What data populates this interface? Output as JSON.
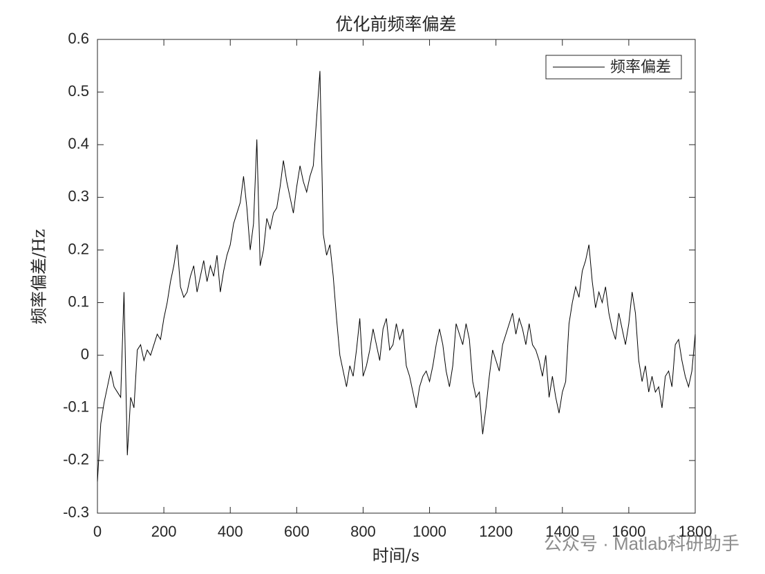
{
  "chart_data": {
    "type": "line",
    "title": "优化前频率偏差",
    "x_label": "时间/s",
    "y_label": "频率偏差/Hz",
    "watermark": "公众号 · Matlab科研助手",
    "legend": "northeast",
    "xlim": [
      0,
      1800
    ],
    "xticks": [
      0,
      200,
      400,
      600,
      800,
      1000,
      1200,
      1400,
      1600,
      1800
    ],
    "ylim": [
      -0.3,
      0.6
    ],
    "yticks": [
      -0.3,
      -0.2,
      -0.1,
      0,
      0.1,
      0.2,
      0.3,
      0.4,
      0.5,
      0.6
    ],
    "x": [
      0,
      10,
      20,
      30,
      40,
      50,
      60,
      70,
      80,
      90,
      100,
      110,
      120,
      130,
      140,
      150,
      160,
      170,
      180,
      190,
      200,
      210,
      220,
      230,
      240,
      250,
      260,
      270,
      280,
      290,
      300,
      310,
      320,
      330,
      340,
      350,
      360,
      370,
      380,
      390,
      400,
      410,
      420,
      430,
      440,
      450,
      460,
      470,
      480,
      490,
      500,
      510,
      520,
      530,
      540,
      550,
      560,
      570,
      580,
      590,
      600,
      610,
      620,
      630,
      640,
      650,
      660,
      670,
      680,
      690,
      700,
      710,
      720,
      730,
      740,
      750,
      760,
      770,
      780,
      790,
      800,
      810,
      820,
      830,
      840,
      850,
      860,
      870,
      880,
      890,
      900,
      910,
      920,
      930,
      940,
      950,
      960,
      970,
      980,
      990,
      1000,
      1010,
      1020,
      1030,
      1040,
      1050,
      1060,
      1070,
      1080,
      1090,
      1100,
      1110,
      1120,
      1130,
      1140,
      1150,
      1160,
      1170,
      1180,
      1190,
      1200,
      1210,
      1220,
      1230,
      1240,
      1250,
      1260,
      1270,
      1280,
      1290,
      1300,
      1310,
      1320,
      1330,
      1340,
      1350,
      1360,
      1370,
      1380,
      1390,
      1400,
      1410,
      1420,
      1430,
      1440,
      1450,
      1460,
      1470,
      1480,
      1490,
      1500,
      1510,
      1520,
      1530,
      1540,
      1550,
      1560,
      1570,
      1580,
      1590,
      1600,
      1610,
      1620,
      1630,
      1640,
      1650,
      1660,
      1670,
      1680,
      1690,
      1700,
      1710,
      1720,
      1730,
      1740,
      1750,
      1760,
      1770,
      1780,
      1790,
      1800
    ],
    "series": [
      {
        "name": "频率偏差",
        "color": "#000000",
        "values": [
          -0.24,
          -0.13,
          -0.09,
          -0.06,
          -0.03,
          -0.06,
          -0.07,
          -0.08,
          0.12,
          -0.19,
          -0.08,
          -0.1,
          0.01,
          0.02,
          -0.01,
          0.01,
          0.0,
          0.02,
          0.04,
          0.03,
          0.07,
          0.1,
          0.14,
          0.17,
          0.21,
          0.13,
          0.11,
          0.12,
          0.15,
          0.17,
          0.12,
          0.15,
          0.18,
          0.14,
          0.17,
          0.15,
          0.19,
          0.12,
          0.16,
          0.19,
          0.21,
          0.25,
          0.27,
          0.29,
          0.34,
          0.28,
          0.2,
          0.25,
          0.41,
          0.17,
          0.2,
          0.26,
          0.24,
          0.27,
          0.28,
          0.32,
          0.37,
          0.33,
          0.3,
          0.27,
          0.32,
          0.36,
          0.33,
          0.31,
          0.34,
          0.36,
          0.45,
          0.54,
          0.23,
          0.19,
          0.21,
          0.15,
          0.07,
          0.0,
          -0.03,
          -0.06,
          -0.02,
          -0.04,
          0.01,
          0.07,
          -0.04,
          -0.02,
          0.01,
          0.05,
          0.02,
          -0.01,
          0.05,
          0.07,
          0.01,
          0.02,
          0.06,
          0.03,
          0.05,
          -0.02,
          -0.04,
          -0.07,
          -0.1,
          -0.06,
          -0.04,
          -0.03,
          -0.05,
          -0.02,
          0.02,
          0.05,
          0.02,
          -0.03,
          -0.06,
          -0.02,
          0.06,
          0.04,
          0.02,
          0.06,
          0.03,
          -0.05,
          -0.08,
          -0.07,
          -0.15,
          -0.1,
          -0.04,
          0.01,
          -0.01,
          -0.03,
          0.02,
          0.04,
          0.06,
          0.08,
          0.04,
          0.07,
          0.05,
          0.02,
          0.06,
          0.02,
          0.01,
          -0.01,
          -0.04,
          0.0,
          -0.08,
          -0.04,
          -0.08,
          -0.11,
          -0.07,
          -0.05,
          0.06,
          0.1,
          0.13,
          0.11,
          0.16,
          0.18,
          0.21,
          0.14,
          0.09,
          0.12,
          0.1,
          0.13,
          0.08,
          0.05,
          0.03,
          0.08,
          0.05,
          0.02,
          0.06,
          0.12,
          0.08,
          -0.01,
          -0.05,
          -0.02,
          -0.07,
          -0.04,
          -0.07,
          -0.06,
          -0.1,
          -0.04,
          -0.03,
          -0.06,
          0.02,
          0.03,
          -0.01,
          -0.04,
          -0.06,
          -0.03,
          0.04
        ]
      }
    ]
  }
}
